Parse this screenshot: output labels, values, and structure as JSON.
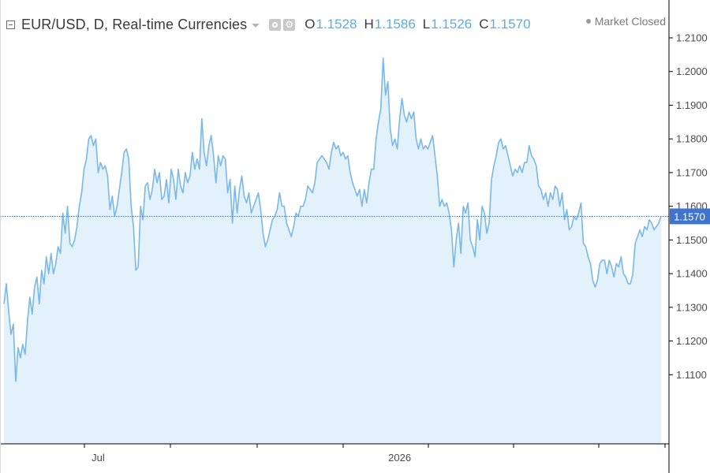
{
  "header": {
    "title": "EUR/USD, D, Real-time Currencies",
    "ohlc": [
      {
        "key": "O",
        "value": "1.1528"
      },
      {
        "key": "H",
        "value": "1.1586"
      },
      {
        "key": "L",
        "value": "1.1526"
      },
      {
        "key": "C",
        "value": "1.1570"
      }
    ]
  },
  "status": {
    "label": "Market Closed"
  },
  "icons": {
    "collapse": "minus-square-icon",
    "dropdown": "caret-down-icon",
    "visibility": "eye-icon",
    "settings": "gear-icon"
  },
  "colors": {
    "line": "#7ab8e8",
    "area": "#e3f1fb",
    "accent": "#3e74cf",
    "value_text": "#5aaee3"
  },
  "chart_data": {
    "type": "area",
    "series": [
      {
        "values": [
          1.131,
          1.137,
          1.129,
          1.122,
          1.125,
          1.108,
          1.118,
          1.115,
          1.119,
          1.116,
          1.126,
          1.133,
          1.128,
          1.136,
          1.139,
          1.131,
          1.141,
          1.137,
          1.145,
          1.14,
          1.146,
          1.14,
          1.143,
          1.148,
          1.146,
          1.158,
          1.152,
          1.16,
          1.149,
          1.148,
          1.15,
          1.154,
          1.16,
          1.164,
          1.171,
          1.174,
          1.18,
          1.181,
          1.178,
          1.18,
          1.17,
          1.173,
          1.171,
          1.172,
          1.169,
          1.159,
          1.163,
          1.157,
          1.16,
          1.165,
          1.17,
          1.176,
          1.177,
          1.174,
          1.16,
          1.154,
          1.141,
          1.142,
          1.16,
          1.156,
          1.166,
          1.167,
          1.162,
          1.165,
          1.171,
          1.167,
          1.17,
          1.162,
          1.163,
          1.168,
          1.161,
          1.171,
          1.168,
          1.162,
          1.171,
          1.166,
          1.164,
          1.17,
          1.167,
          1.169,
          1.176,
          1.171,
          1.174,
          1.171,
          1.186,
          1.176,
          1.172,
          1.178,
          1.181,
          1.175,
          1.167,
          1.175,
          1.172,
          1.175,
          1.174,
          1.164,
          1.168,
          1.155,
          1.166,
          1.158,
          1.165,
          1.169,
          1.163,
          1.161,
          1.164,
          1.158,
          1.16,
          1.162,
          1.164,
          1.159,
          1.152,
          1.148,
          1.15,
          1.153,
          1.156,
          1.157,
          1.159,
          1.164,
          1.16,
          1.16,
          1.155,
          1.153,
          1.151,
          1.154,
          1.158,
          1.157,
          1.16,
          1.16,
          1.162,
          1.166,
          1.165,
          1.164,
          1.167,
          1.173,
          1.174,
          1.175,
          1.174,
          1.173,
          1.171,
          1.176,
          1.179,
          1.177,
          1.178,
          1.175,
          1.176,
          1.174,
          1.175,
          1.17,
          1.167,
          1.165,
          1.163,
          1.165,
          1.16,
          1.165,
          1.161,
          1.167,
          1.171,
          1.171,
          1.18,
          1.185,
          1.189,
          1.204,
          1.193,
          1.197,
          1.183,
          1.178,
          1.18,
          1.177,
          1.186,
          1.192,
          1.187,
          1.185,
          1.188,
          1.186,
          1.188,
          1.18,
          1.177,
          1.18,
          1.177,
          1.178,
          1.177,
          1.179,
          1.181,
          1.175,
          1.169,
          1.16,
          1.162,
          1.16,
          1.161,
          1.158,
          1.153,
          1.142,
          1.15,
          1.155,
          1.146,
          1.16,
          1.158,
          1.161,
          1.15,
          1.148,
          1.145,
          1.156,
          1.15,
          1.16,
          1.158,
          1.152,
          1.155,
          1.168,
          1.172,
          1.175,
          1.179,
          1.18,
          1.177,
          1.178,
          1.175,
          1.172,
          1.169,
          1.171,
          1.17,
          1.172,
          1.17,
          1.173,
          1.173,
          1.178,
          1.175,
          1.174,
          1.172,
          1.166,
          1.165,
          1.162,
          1.164,
          1.16,
          1.164,
          1.162,
          1.166,
          1.165,
          1.16,
          1.164,
          1.156,
          1.159,
          1.153,
          1.154,
          1.157,
          1.156,
          1.158,
          1.161,
          1.149,
          1.148,
          1.145,
          1.143,
          1.138,
          1.136,
          1.138,
          1.143,
          1.144,
          1.144,
          1.14,
          1.144,
          1.142,
          1.139,
          1.143,
          1.142,
          1.145,
          1.14,
          1.139,
          1.137,
          1.137,
          1.14,
          1.149,
          1.151,
          1.153,
          1.151,
          1.154,
          1.153,
          1.156,
          1.155,
          1.153,
          1.154,
          1.155,
          1.157
        ]
      }
    ],
    "y_range": [
      1.1,
      1.21
    ],
    "y_ticks": [
      "1.2100",
      "1.2000",
      "1.1900",
      "1.1800",
      "1.1700",
      "1.1600",
      "1.1500",
      "1.1400",
      "1.1300",
      "1.1200",
      "1.1100"
    ],
    "y_axis_position": "right",
    "x_labels": [
      {
        "label": "Jul",
        "index": 40
      },
      {
        "label": "2026",
        "index": 168
      }
    ],
    "last_value": 1.157,
    "last_value_label": "1.1570",
    "grid": false
  }
}
